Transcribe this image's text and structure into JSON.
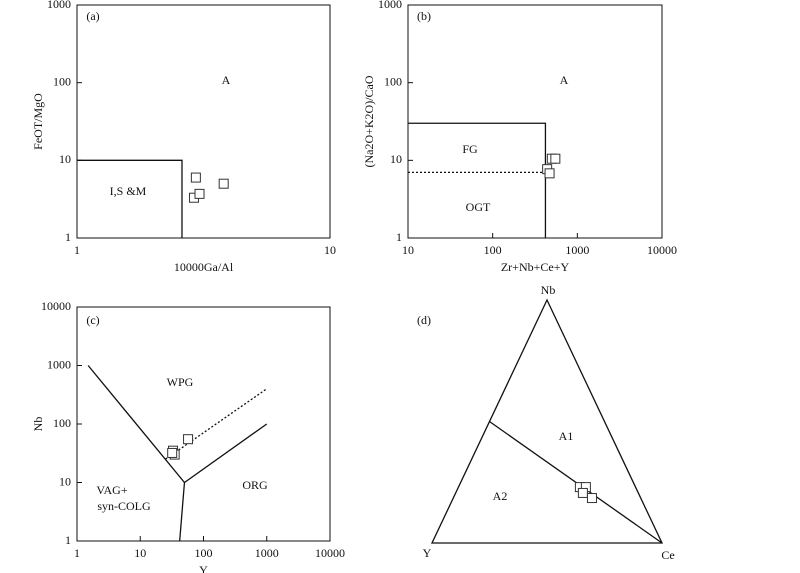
{
  "chart_data": [
    {
      "type": "scatter",
      "label": "(a)",
      "xlabel": "10000Ga/Al",
      "ylabel": "FeOT/MgO",
      "xscale": "log",
      "yscale": "log",
      "xlim": [
        1,
        10
      ],
      "ylim": [
        1,
        1000
      ],
      "xticks": [
        1,
        10
      ],
      "yticks": [
        1,
        10,
        100,
        1000
      ],
      "x": [
        2.95,
        2.9,
        3.05,
        3.8
      ],
      "values": [
        6,
        3.3,
        3.7,
        5
      ],
      "marker": "square",
      "color": "#333333",
      "lines": [
        {
          "style": "solid",
          "x": [
            1,
            2.6,
            2.6
          ],
          "y": [
            10,
            10,
            1
          ]
        }
      ],
      "annotations": [
        "A",
        "I,S &M"
      ]
    },
    {
      "type": "scatter",
      "label": "(b)",
      "xlabel": "Zr+Nb+Ce+Y",
      "ylabel": "(Na2O+K2O)/CaO",
      "xscale": "log",
      "yscale": "log",
      "xlim": [
        10,
        10000
      ],
      "ylim": [
        1,
        1000
      ],
      "xticks": [
        10,
        100,
        1000,
        10000
      ],
      "yticks": [
        1,
        10,
        100,
        1000
      ],
      "x": [
        440,
        470,
        500,
        550
      ],
      "values": [
        7.7,
        6.8,
        10.5,
        10.5
      ],
      "marker": "square",
      "color": "#333333",
      "lines": [
        {
          "style": "solid",
          "x": [
            10,
            420,
            420
          ],
          "y": [
            30,
            30,
            1
          ]
        },
        {
          "style": "dotted",
          "x": [
            10,
            420
          ],
          "y": [
            7,
            7
          ]
        }
      ],
      "annotations": [
        "A",
        "FG",
        "OGT"
      ]
    },
    {
      "type": "scatter",
      "label": "(c)",
      "xlabel": "Y",
      "ylabel": "Nb",
      "xscale": "log",
      "yscale": "log",
      "xlim": [
        1,
        10000
      ],
      "ylim": [
        1,
        10000
      ],
      "xticks": [
        1,
        10,
        100,
        1000,
        10000
      ],
      "yticks": [
        1,
        10,
        100,
        1000,
        10000
      ],
      "x": [
        33,
        35,
        32,
        57
      ],
      "values": [
        35,
        30,
        32,
        55
      ],
      "marker": "square",
      "color": "#333333",
      "lines": [
        {
          "style": "solid",
          "x": [
            1.5,
            50,
            1000
          ],
          "y": [
            1000,
            10,
            100
          ]
        },
        {
          "style": "solid",
          "x": [
            50,
            42
          ],
          "y": [
            10,
            1
          ]
        },
        {
          "style": "dotted",
          "x": [
            25,
            1000
          ],
          "y": [
            25,
            400
          ]
        }
      ],
      "annotations": [
        "WPG",
        "VAG+",
        "syn-COLG",
        "ORG"
      ]
    },
    {
      "type": "ternary",
      "label": "(d)",
      "vertices": [
        "Nb",
        "Y",
        "Ce"
      ],
      "points": {
        "Nb": [
          23,
          23,
          20.6,
          18.5
        ],
        "Y": [
          24.2,
          21.6,
          24.1,
          21.2
        ],
        "Ce": [
          52.8,
          55.4,
          55.3,
          60.3
        ]
      },
      "marker": "square",
      "color": "#333333",
      "lines": [
        {
          "style": "solid",
          "Nb": [
            50,
            0
          ],
          "Y": [
            50,
            0
          ],
          "Ce": [
            0,
            100
          ]
        }
      ],
      "annotations": [
        "A1",
        "A2"
      ]
    }
  ]
}
